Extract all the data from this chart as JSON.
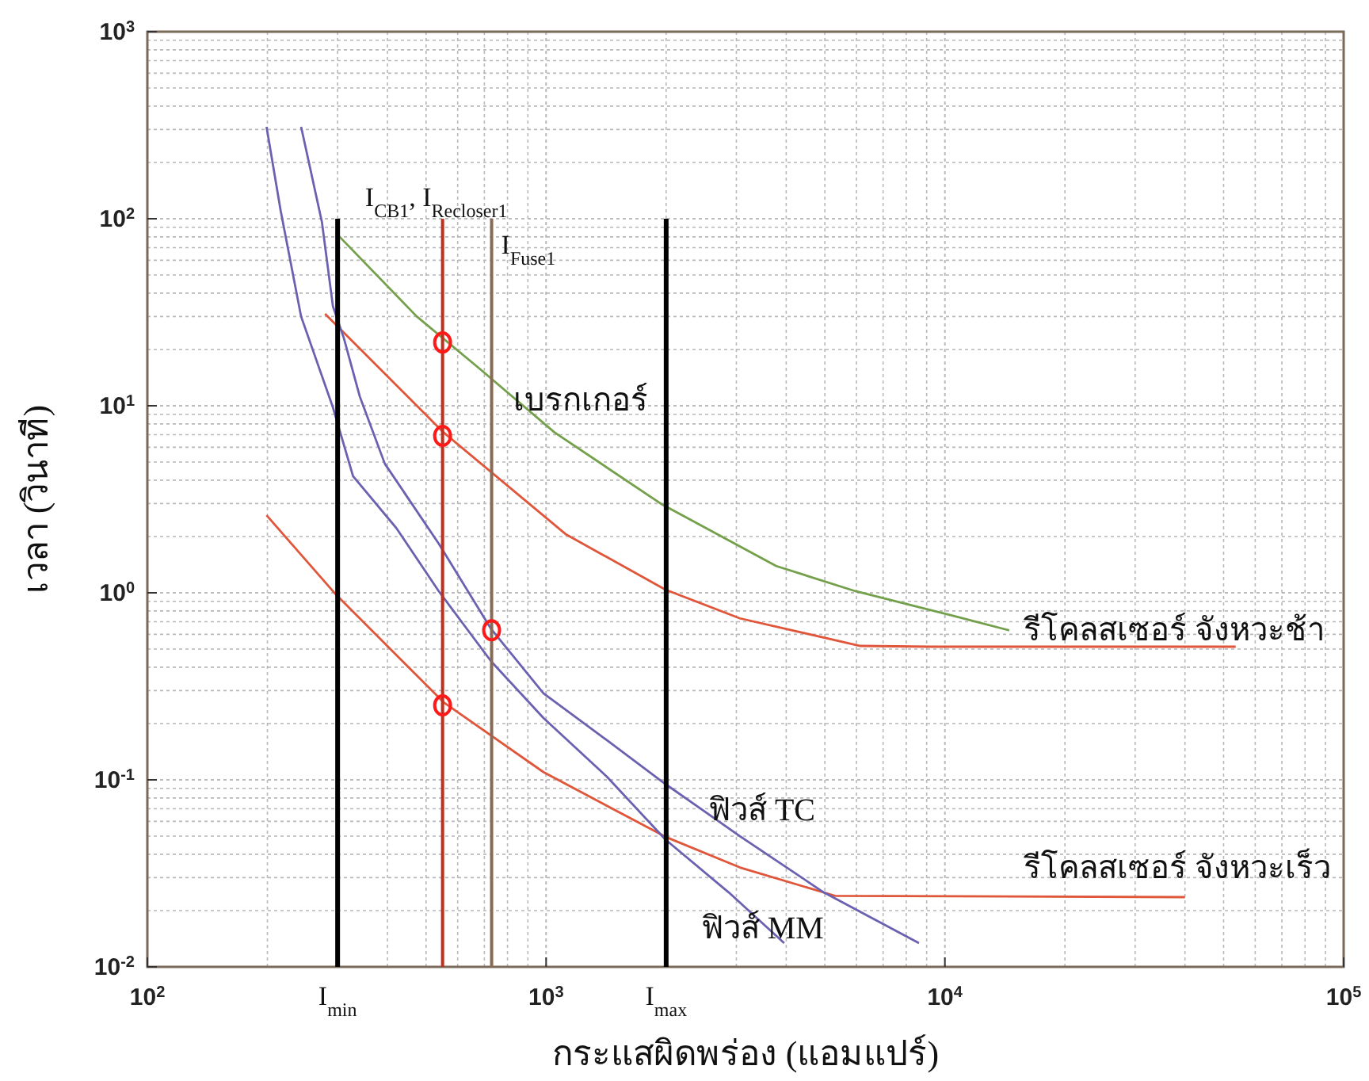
{
  "chart_data": {
    "type": "line",
    "xlabel": "กระแสผิดพร่อง (แอมแปร์)",
    "ylabel": "เวลา (วินาที)",
    "log": "xy",
    "grid": true,
    "xlim": [
      100,
      100000
    ],
    "ylim": [
      0.01,
      1000
    ],
    "xticks": [
      {
        "value": 100,
        "label": "10$^{2}$"
      },
      {
        "value": 1000,
        "label": "10$^{3}$"
      },
      {
        "value": 10000,
        "label": "10$^{4}$"
      },
      {
        "value": 100000,
        "label": "10$^{5}$"
      }
    ],
    "yticks": [
      {
        "value": 0.01,
        "label": "10$^{-2}$"
      },
      {
        "value": 0.1,
        "label": "10$^{-1}$"
      },
      {
        "value": 1,
        "label": "10$^{0}$"
      },
      {
        "value": 10,
        "label": "10$^{1}$"
      },
      {
        "value": 100,
        "label": "10$^{2}$"
      },
      {
        "value": 1000,
        "label": "10$^{3}$"
      }
    ],
    "series": [
      {
        "name": "เบรกเกอร์",
        "color": "#74a04c",
        "x": [
          297,
          474,
          683,
          1050,
          1938,
          3778,
          5970,
          10330,
          14500
        ],
        "values": [
          84,
          30,
          15.7,
          7.2,
          3.0,
          1.39,
          1.02,
          0.76,
          0.63
        ]
      },
      {
        "name": "รีโคลสเซอร์ จังหวะช้า",
        "color": "#e0563a",
        "x": [
          279,
          553,
          1119,
          1991,
          3062,
          6140,
          9180,
          53600
        ],
        "values": [
          31,
          7.2,
          2.06,
          1.04,
          0.73,
          0.52,
          0.515,
          0.515
        ]
      },
      {
        "name": "รีโคลสเซอร์ จังหวะเร็ว",
        "color": "#e0563a",
        "x": [
          199,
          297,
          553,
          985,
          1991,
          3062,
          5300,
          40000
        ],
        "values": [
          2.6,
          0.98,
          0.26,
          0.11,
          0.0496,
          0.034,
          0.024,
          0.0236
        ]
      },
      {
        "name": "ฟิวส์ TC",
        "color": "#6a62b0",
        "x": [
          243,
          274,
          292,
          311,
          341,
          394,
          538,
          728,
          985,
          1420,
          1991,
          3062,
          4970,
          8610
        ],
        "values": [
          310,
          96,
          34,
          23,
          11.2,
          4.9,
          1.83,
          0.64,
          0.29,
          0.163,
          0.095,
          0.05,
          0.025,
          0.0134
        ]
      },
      {
        "name": "ฟิวส์ MM",
        "color": "#6a62b0",
        "x": [
          199,
          216,
          243,
          292,
          328,
          421,
          538,
          728,
          985,
          1420,
          1991,
          2871,
          3954
        ],
        "values": [
          310,
          110,
          30,
          9.8,
          4.2,
          2.22,
          1.02,
          0.43,
          0.214,
          0.104,
          0.048,
          0.025,
          0.0134
        ]
      },
      {
        "name": "I$_{min}$",
        "color": "#000000",
        "x": [
          300,
          300
        ],
        "values": [
          0.01,
          100
        ]
      },
      {
        "name": "I$_{CB1}$, I$_{Recloser1}$",
        "color": "#c0301e",
        "x": [
          550,
          550
        ],
        "values": [
          0.01,
          100
        ]
      },
      {
        "name": "I$_{Fuse1}$",
        "color": "#8a6a55",
        "x": [
          730,
          730
        ],
        "values": [
          0.01,
          100
        ]
      },
      {
        "name": "I$_{max}$",
        "color": "#000000",
        "x": [
          2000,
          2000
        ],
        "values": [
          0.01,
          100
        ]
      },
      {
        "type": "scatter",
        "marker": "circle",
        "color": "#ff1a1a",
        "x": [
          550,
          550,
          730,
          550
        ],
        "values": [
          21.8,
          6.9,
          0.63,
          0.25
        ]
      }
    ]
  }
}
